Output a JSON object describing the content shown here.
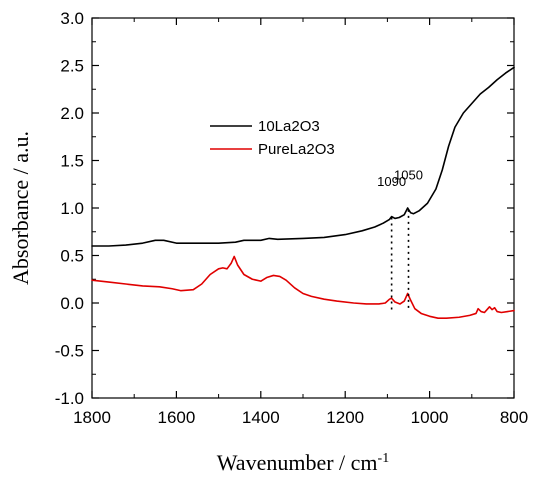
{
  "chart_data": {
    "type": "line",
    "title": "",
    "xlabel": "Wavenumber / cm",
    "xlabel_superscript": "-1",
    "ylabel": "Absorbance  / a.u.",
    "xlim": [
      1800,
      800
    ],
    "x_reversed": true,
    "ylim": [
      -1.0,
      3.0
    ],
    "x_ticks": [
      1800,
      1600,
      1400,
      1200,
      1000,
      800
    ],
    "x_tick_labels": [
      "1800",
      "1600",
      "1400",
      "1200",
      "1000",
      "800"
    ],
    "y_ticks": [
      -1.0,
      -0.5,
      0.0,
      0.5,
      1.0,
      1.5,
      2.0,
      2.5,
      3.0
    ],
    "y_tick_labels": [
      "-1.0",
      "-0.5",
      "0.0",
      "0.5",
      "1.0",
      "1.5",
      "2.0",
      "2.5",
      "3.0"
    ],
    "grid": false,
    "legend_position": "upper-left-center",
    "series": [
      {
        "name": "10La2O3",
        "color": "#000000",
        "points": [
          [
            1800,
            0.6
          ],
          [
            1760,
            0.6
          ],
          [
            1720,
            0.61
          ],
          [
            1680,
            0.63
          ],
          [
            1650,
            0.66
          ],
          [
            1630,
            0.66
          ],
          [
            1600,
            0.63
          ],
          [
            1560,
            0.63
          ],
          [
            1500,
            0.63
          ],
          [
            1460,
            0.64
          ],
          [
            1440,
            0.66
          ],
          [
            1420,
            0.66
          ],
          [
            1400,
            0.66
          ],
          [
            1380,
            0.68
          ],
          [
            1360,
            0.67
          ],
          [
            1300,
            0.68
          ],
          [
            1250,
            0.69
          ],
          [
            1200,
            0.72
          ],
          [
            1160,
            0.76
          ],
          [
            1130,
            0.8
          ],
          [
            1110,
            0.84
          ],
          [
            1095,
            0.88
          ],
          [
            1090,
            0.91
          ],
          [
            1082,
            0.89
          ],
          [
            1072,
            0.9
          ],
          [
            1060,
            0.93
          ],
          [
            1052,
            1.0
          ],
          [
            1045,
            0.95
          ],
          [
            1038,
            0.94
          ],
          [
            1025,
            0.97
          ],
          [
            1005,
            1.05
          ],
          [
            985,
            1.2
          ],
          [
            970,
            1.4
          ],
          [
            955,
            1.65
          ],
          [
            940,
            1.85
          ],
          [
            920,
            2.0
          ],
          [
            900,
            2.1
          ],
          [
            880,
            2.2
          ],
          [
            860,
            2.27
          ],
          [
            840,
            2.35
          ],
          [
            820,
            2.42
          ],
          [
            800,
            2.48
          ]
        ]
      },
      {
        "name": "PureLa2O3",
        "color": "#e00000",
        "points": [
          [
            1800,
            0.24
          ],
          [
            1760,
            0.22
          ],
          [
            1720,
            0.2
          ],
          [
            1680,
            0.18
          ],
          [
            1640,
            0.17
          ],
          [
            1610,
            0.15
          ],
          [
            1590,
            0.13
          ],
          [
            1560,
            0.14
          ],
          [
            1540,
            0.2
          ],
          [
            1520,
            0.3
          ],
          [
            1500,
            0.36
          ],
          [
            1490,
            0.37
          ],
          [
            1480,
            0.36
          ],
          [
            1470,
            0.42
          ],
          [
            1463,
            0.49
          ],
          [
            1455,
            0.4
          ],
          [
            1440,
            0.3
          ],
          [
            1420,
            0.25
          ],
          [
            1400,
            0.23
          ],
          [
            1385,
            0.27
          ],
          [
            1370,
            0.29
          ],
          [
            1355,
            0.28
          ],
          [
            1340,
            0.24
          ],
          [
            1320,
            0.16
          ],
          [
            1300,
            0.1
          ],
          [
            1280,
            0.07
          ],
          [
            1250,
            0.04
          ],
          [
            1220,
            0.02
          ],
          [
            1180,
            0.0
          ],
          [
            1150,
            -0.01
          ],
          [
            1120,
            -0.01
          ],
          [
            1105,
            0.0
          ],
          [
            1095,
            0.04
          ],
          [
            1090,
            0.05
          ],
          [
            1082,
            0.01
          ],
          [
            1070,
            -0.01
          ],
          [
            1060,
            0.02
          ],
          [
            1052,
            0.1
          ],
          [
            1045,
            0.03
          ],
          [
            1035,
            -0.06
          ],
          [
            1020,
            -0.11
          ],
          [
            1000,
            -0.14
          ],
          [
            980,
            -0.16
          ],
          [
            960,
            -0.16
          ],
          [
            930,
            -0.15
          ],
          [
            905,
            -0.13
          ],
          [
            890,
            -0.11
          ],
          [
            885,
            -0.06
          ],
          [
            878,
            -0.09
          ],
          [
            870,
            -0.1
          ],
          [
            862,
            -0.06
          ],
          [
            858,
            -0.04
          ],
          [
            852,
            -0.07
          ],
          [
            846,
            -0.05
          ],
          [
            840,
            -0.09
          ],
          [
            830,
            -0.1
          ],
          [
            815,
            -0.09
          ],
          [
            800,
            -0.08
          ]
        ]
      }
    ],
    "annotations": [
      {
        "text": "1090",
        "x": 1090,
        "y_from": -0.08,
        "y_to": 0.9,
        "label_y": 1.23
      },
      {
        "text": "1050",
        "x": 1050,
        "y_from": -0.08,
        "y_to": 0.98,
        "label_y": 1.3
      }
    ]
  }
}
